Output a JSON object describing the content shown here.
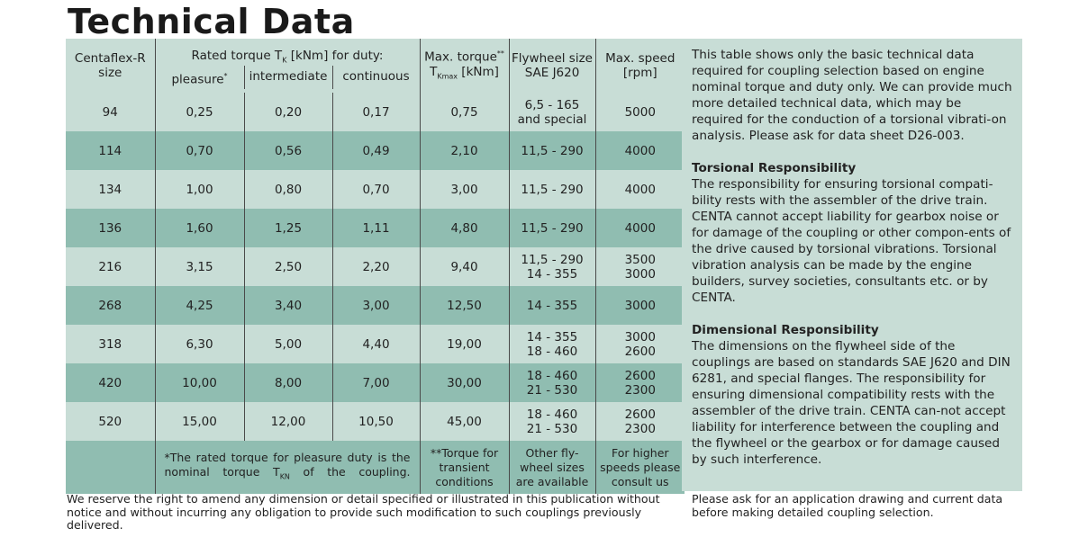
{
  "title": "Technical Data",
  "header": {
    "size": [
      "Centaflex-R",
      "size"
    ],
    "rated": "Rated torque T",
    "rated_sub": "K",
    "rated_tail": " [kNm] for duty:",
    "pleasure": "pleasure",
    "intermediate": "intermediate",
    "continuous": "continuous",
    "max_torque": "Max. torque",
    "max_sup": "**",
    "tkmax": "T",
    "tkmax_sub": "Kmax",
    "tkmax_unit": " [kNm]",
    "flywheel": [
      "Flywheel size",
      "SAE J620"
    ],
    "speed": [
      "Max. speed",
      "[rpm]"
    ],
    "pleasure_sup": "*"
  },
  "rows": [
    {
      "size": "94",
      "pleasure": "0,25",
      "intermediate": "0,20",
      "continuous": "0,17",
      "max": "0,75",
      "flywheel": [
        "6,5 - 165",
        "and special"
      ],
      "speed": [
        "5000"
      ]
    },
    {
      "size": "114",
      "pleasure": "0,70",
      "intermediate": "0,56",
      "continuous": "0,49",
      "max": "2,10",
      "flywheel": [
        "11,5 - 290"
      ],
      "speed": [
        "4000"
      ]
    },
    {
      "size": "134",
      "pleasure": "1,00",
      "intermediate": "0,80",
      "continuous": "0,70",
      "max": "3,00",
      "flywheel": [
        "11,5 - 290"
      ],
      "speed": [
        "4000"
      ]
    },
    {
      "size": "136",
      "pleasure": "1,60",
      "intermediate": "1,25",
      "continuous": "1,11",
      "max": "4,80",
      "flywheel": [
        "11,5 - 290"
      ],
      "speed": [
        "4000"
      ]
    },
    {
      "size": "216",
      "pleasure": "3,15",
      "intermediate": "2,50",
      "continuous": "2,20",
      "max": "9,40",
      "flywheel": [
        "11,5 - 290",
        "14 - 355"
      ],
      "speed": [
        "3500",
        "3000"
      ]
    },
    {
      "size": "268",
      "pleasure": "4,25",
      "intermediate": "3,40",
      "continuous": "3,00",
      "max": "12,50",
      "flywheel": [
        "14 - 355"
      ],
      "speed": [
        "3000"
      ]
    },
    {
      "size": "318",
      "pleasure": "6,30",
      "intermediate": "5,00",
      "continuous": "4,40",
      "max": "19,00",
      "flywheel": [
        "14 - 355",
        "18 - 460"
      ],
      "speed": [
        "3000",
        "2600"
      ]
    },
    {
      "size": "420",
      "pleasure": "10,00",
      "intermediate": "8,00",
      "continuous": "7,00",
      "max": "30,00",
      "flywheel": [
        "18 - 460",
        "21 - 530"
      ],
      "speed": [
        "2600",
        "2300"
      ]
    },
    {
      "size": "520",
      "pleasure": "15,00",
      "intermediate": "12,00",
      "continuous": "10,50",
      "max": "45,00",
      "flywheel": [
        "18 - 460",
        "21 - 530"
      ],
      "speed": [
        "2600",
        "2300"
      ]
    }
  ],
  "footnotes": {
    "pleasure": "*The rated torque for pleasure duty is the nominal torque T",
    "pleasure_sub": "KN",
    "pleasure_tail": " of the coupling.",
    "torque": [
      "**Torque for",
      "transient",
      "conditions"
    ],
    "flywheel": [
      "Other fly-",
      "wheel sizes",
      "are available"
    ],
    "speed": [
      "For higher",
      "speeds please",
      "consult us"
    ]
  },
  "side": {
    "intro": "This table shows only the basic technical data required for coupling selection based on engine nominal torque and duty only. We can provide much more detailed technical data, which may be required for the conduction of a torsional vibrati-on analysis. Please ask for data sheet D26-003.",
    "torsional_title": "Torsional Responsibility",
    "torsional": "The responsibility for ensuring torsional compati-bility rests with the assembler of the drive train. CENTA cannot accept liability for gearbox noise or for damage of the coupling or other compon-ents of the drive caused by torsional vibrations. Torsional vibration analysis can be made by the engine builders, survey societies, consultants etc. or by CENTA.",
    "dimensional_title": "Dimensional Responsibility",
    "dimensional": "The dimensions on the flywheel side of the couplings are based on standards SAE J620 and DIN 6281, and special flanges. The responsibility for ensuring dimensional compatibility rests with the assembler of the drive train. CENTA can-not accept liability for interference between the coupling and the flywheel or the gearbox or for damage caused by such interference."
  },
  "footer_left": "We reserve the right to amend any dimension or detail specified or illustrated in this publication without notice and without incurring any obligation to provide such modification to such couplings previously delivered.",
  "footer_right": "Please ask for an application drawing and current data before making detailed coupling selection.",
  "colors": {
    "dark": "#90bdb1",
    "light": "#c8ddd6"
  }
}
